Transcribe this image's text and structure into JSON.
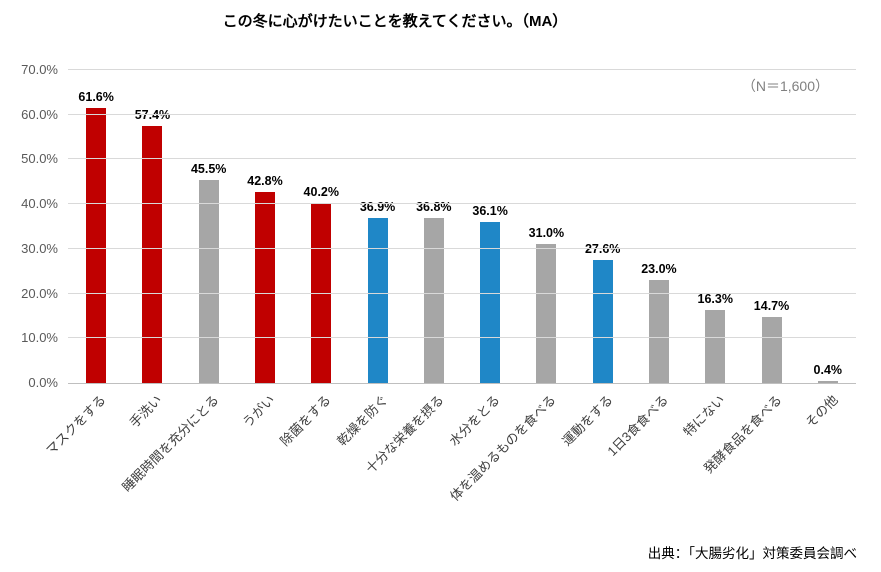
{
  "title": "この冬に心がけたいことを教えてください。（MA）",
  "n_label": "（N＝1,600）",
  "source": "出典：「大腸劣化」対策委員会調べ",
  "chart_data": {
    "type": "bar",
    "title": "この冬に心がけたいことを教えてください。（MA）",
    "subtitle": "（N＝1,600）",
    "categories": [
      "マスクをする",
      "手洗い",
      "睡眠時間を充分にとる",
      "うがい",
      "除菌をする",
      "乾燥を防ぐ",
      "十分な栄養を摂る",
      "水分をとる",
      "体を温めるものを食べる",
      "運動をする",
      "1日3食食べる",
      "特にない",
      "発酵食品を食べる",
      "その他"
    ],
    "values": [
      61.6,
      57.4,
      45.5,
      42.8,
      40.2,
      36.9,
      36.8,
      36.1,
      31.0,
      27.6,
      23.0,
      16.3,
      14.7,
      0.4
    ],
    "value_labels": [
      "61.6%",
      "57.4%",
      "45.5%",
      "42.8%",
      "40.2%",
      "36.9%",
      "36.8%",
      "36.1%",
      "31.0%",
      "27.6%",
      "23.0%",
      "16.3%",
      "14.7%",
      "0.4%"
    ],
    "bar_colors": [
      "red",
      "red",
      "gray",
      "red",
      "red",
      "blue",
      "gray",
      "blue",
      "gray",
      "blue",
      "gray",
      "gray",
      "gray",
      "gray"
    ],
    "palette": {
      "red": "#C00000",
      "blue": "#1F87C7",
      "gray": "#A6A6A6"
    },
    "xlabel": "",
    "ylabel": "",
    "ylim": [
      0,
      70
    ],
    "y_ticks": [
      "0.0%",
      "10.0%",
      "20.0%",
      "30.0%",
      "40.0%",
      "50.0%",
      "60.0%",
      "70.0%"
    ],
    "grid": true,
    "legend": "none",
    "annotation": "出典：「大腸劣化」対策委員会調べ"
  }
}
